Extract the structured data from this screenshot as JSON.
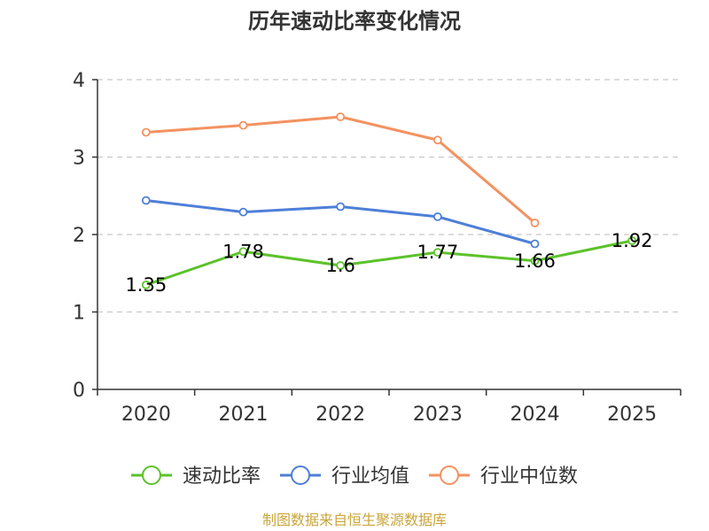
{
  "chart_data": {
    "type": "line",
    "title": "历年速动比率变化情况",
    "xlabel": "",
    "ylabel": "",
    "categories": [
      "2020",
      "2021",
      "2022",
      "2023",
      "2024",
      "2025"
    ],
    "y_ticks": [
      "0",
      "1",
      "2",
      "3",
      "4"
    ],
    "ylim": [
      0,
      4
    ],
    "grid": true,
    "legend_position": "bottom",
    "series": [
      {
        "name": "速动比率",
        "color": "#5cc22b",
        "values": [
          1.35,
          1.78,
          1.6,
          1.77,
          1.66,
          1.92
        ],
        "labels": [
          "1.35",
          "1.78",
          "1.6",
          "1.77",
          "1.66",
          "1.92"
        ]
      },
      {
        "name": "行业均值",
        "color": "#4e7fd8",
        "values": [
          2.44,
          2.29,
          2.36,
          2.23,
          1.88,
          null
        ]
      },
      {
        "name": "行业中位数",
        "color": "#f39260",
        "values": [
          3.32,
          3.41,
          3.52,
          3.22,
          2.15,
          null
        ]
      }
    ],
    "source": "制图数据来自恒生聚源数据库"
  }
}
